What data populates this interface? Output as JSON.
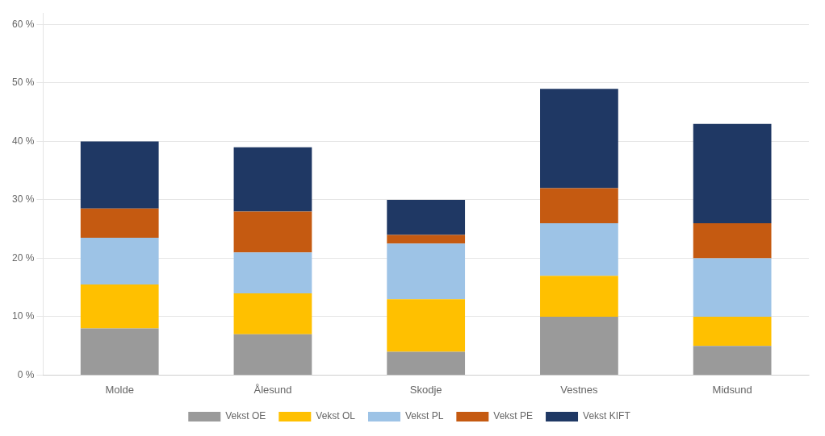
{
  "chart_data": {
    "type": "bar",
    "categories": [
      "Molde",
      "Ålesund",
      "Skodje",
      "Vestnes",
      "Midsund"
    ],
    "series": [
      {
        "name": "Vekst OE",
        "color": "#9a9a9a",
        "values": [
          8.0,
          7.0,
          4.0,
          10.0,
          5.0
        ]
      },
      {
        "name": "Vekst OL",
        "color": "#ffc000",
        "values": [
          7.5,
          7.0,
          9.0,
          7.0,
          5.0
        ]
      },
      {
        "name": "Vekst PL",
        "color": "#9dc3e6",
        "values": [
          8.0,
          7.0,
          9.5,
          9.0,
          10.0
        ]
      },
      {
        "name": "Vekst PE",
        "color": "#c55a11",
        "values": [
          5.0,
          7.0,
          1.5,
          6.0,
          6.0
        ]
      },
      {
        "name": "Vekst KIFT",
        "color": "#1f3864",
        "values": [
          11.5,
          11.0,
          6.0,
          17.0,
          17.0
        ]
      }
    ],
    "ylim": [
      0,
      62
    ],
    "yticks": [
      {
        "value": 0,
        "label": "0 %"
      },
      {
        "value": 10,
        "label": "10 %"
      },
      {
        "value": 20,
        "label": "20 %"
      },
      {
        "value": 30,
        "label": "30 %"
      },
      {
        "value": 40,
        "label": "40 %"
      },
      {
        "value": 50,
        "label": "50 %"
      },
      {
        "value": 60,
        "label": "60 %"
      }
    ],
    "stacked": true,
    "grid": true,
    "legend": "bottom"
  }
}
